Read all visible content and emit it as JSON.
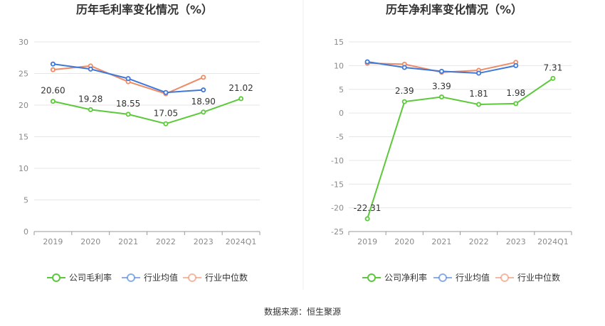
{
  "source_note": "数据来源：恒生聚源",
  "chart_data": [
    {
      "type": "line",
      "title": "历年毛利率变化情况（%）",
      "categories": [
        "2019",
        "2020",
        "2021",
        "2022",
        "2023",
        "2024Q1"
      ],
      "ylim": [
        0,
        30
      ],
      "yticks": [
        0,
        5,
        10,
        15,
        20,
        25,
        30
      ],
      "grid": true,
      "legend_position": "bottom",
      "series": [
        {
          "name": "公司毛利率",
          "color": "#5cc93b",
          "values": [
            20.6,
            19.28,
            18.55,
            17.05,
            18.9,
            21.02
          ],
          "labels": [
            "20.60",
            "19.28",
            "18.55",
            "17.05",
            "18.90",
            "21.02"
          ]
        },
        {
          "name": "行业均值",
          "color": "#3f78d6",
          "values": [
            26.5,
            25.7,
            24.2,
            22.0,
            22.4,
            null
          ]
        },
        {
          "name": "行业中位数",
          "color": "#ee8a66",
          "values": [
            25.6,
            26.2,
            23.7,
            21.8,
            24.4,
            null
          ]
        }
      ]
    },
    {
      "type": "line",
      "title": "历年净利率变化情况（%）",
      "categories": [
        "2019",
        "2020",
        "2021",
        "2022",
        "2023",
        "2024Q1"
      ],
      "ylim": [
        -25,
        15
      ],
      "yticks": [
        -25,
        -20,
        -15,
        -10,
        -5,
        0,
        5,
        10,
        15
      ],
      "grid": true,
      "legend_position": "bottom",
      "series": [
        {
          "name": "公司净利率",
          "color": "#5cc93b",
          "values": [
            -22.31,
            2.39,
            3.39,
            1.81,
            1.98,
            7.31
          ],
          "labels": [
            "-22.31",
            "2.39",
            "3.39",
            "1.81",
            "1.98",
            "7.31"
          ]
        },
        {
          "name": "行业均值",
          "color": "#3f78d6",
          "values": [
            10.8,
            9.6,
            8.8,
            8.4,
            10.0,
            null
          ]
        },
        {
          "name": "行业中位数",
          "color": "#ee8a66",
          "values": [
            10.5,
            10.3,
            8.6,
            9.0,
            10.7,
            null
          ]
        }
      ]
    }
  ]
}
